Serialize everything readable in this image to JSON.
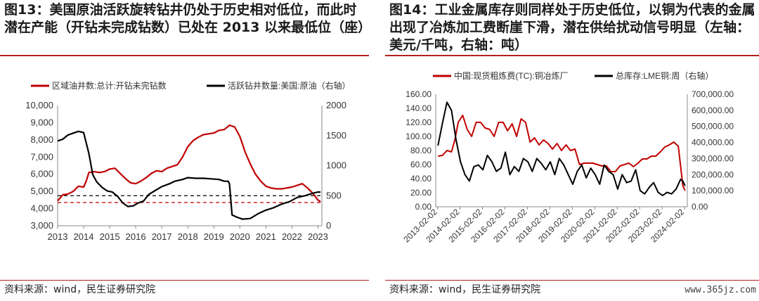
{
  "left": {
    "title": "图13：美国原油活跃旋转钻井仍处于历史相对低位，而此时潜在产能（开钻未完成钻数）已处在 2013 以来最低位（座）",
    "source": "资料来源：wind，民生证券研究院",
    "chart_data": {
      "type": "line",
      "title": "",
      "legend": "top",
      "x_ticks": [
        "2013",
        "2014",
        "2015",
        "2016",
        "2017",
        "2018",
        "2019",
        "2020",
        "2021",
        "2022",
        "2023"
      ],
      "y_left": {
        "ticks": [
          "3,000",
          "4,000",
          "5,000",
          "6,000",
          "7,000",
          "8,000",
          "9,000",
          "10,000"
        ],
        "range": [
          3000,
          10000
        ]
      },
      "y_right": {
        "ticks": [
          "0",
          "500",
          "1000",
          "1500",
          "2000"
        ],
        "range": [
          0,
          2000
        ]
      },
      "reference_lines": [
        {
          "axis": "left",
          "value": 4350,
          "color": "#c00000",
          "style": "dashed"
        },
        {
          "axis": "right",
          "value": 500,
          "color": "#000000",
          "style": "dashed"
        }
      ],
      "series": [
        {
          "name": "区域油井数:总计:开钻未完钻数",
          "axis": "left",
          "color": "#c00000",
          "x": [
            2013.0,
            2013.2,
            2013.4,
            2013.6,
            2013.8,
            2014.0,
            2014.1,
            2014.2,
            2014.4,
            2014.6,
            2014.8,
            2015.0,
            2015.2,
            2015.4,
            2015.6,
            2015.8,
            2016.0,
            2016.2,
            2016.4,
            2016.6,
            2016.8,
            2017.0,
            2017.2,
            2017.4,
            2017.6,
            2017.8,
            2018.0,
            2018.2,
            2018.4,
            2018.6,
            2018.8,
            2019.0,
            2019.2,
            2019.4,
            2019.6,
            2019.8,
            2020.0,
            2020.2,
            2020.4,
            2020.6,
            2020.8,
            2021.0,
            2021.2,
            2021.4,
            2021.6,
            2021.8,
            2022.0,
            2022.2,
            2022.4,
            2022.6,
            2022.8,
            2023.0,
            2023.1
          ],
          "y": [
            4450,
            4800,
            4850,
            5000,
            5300,
            5250,
            5600,
            6100,
            6150,
            6100,
            6150,
            6300,
            6350,
            6050,
            5750,
            5500,
            5450,
            5600,
            5800,
            6050,
            6200,
            6150,
            6350,
            6450,
            6550,
            7000,
            7600,
            7950,
            8150,
            8300,
            8350,
            8400,
            8550,
            8600,
            8850,
            8750,
            8200,
            7300,
            6600,
            6000,
            5600,
            5300,
            5200,
            5150,
            5150,
            5200,
            5250,
            5350,
            5450,
            5200,
            4900,
            4500,
            4400
          ]
        },
        {
          "name": "活跃钻井数量:美国:原油（右轴）",
          "axis": "right",
          "color": "#000000",
          "x": [
            2013.0,
            2013.2,
            2013.4,
            2013.6,
            2013.8,
            2014.0,
            2014.2,
            2014.35,
            2014.5,
            2014.7,
            2014.9,
            2015.1,
            2015.3,
            2015.5,
            2015.7,
            2015.9,
            2016.1,
            2016.3,
            2016.5,
            2016.8,
            2017.0,
            2017.3,
            2017.5,
            2017.8,
            2018.0,
            2018.3,
            2018.6,
            2018.9,
            2019.2,
            2019.4,
            2019.55,
            2019.6,
            2019.7,
            2019.9,
            2020.1,
            2020.4,
            2020.7,
            2021.0,
            2021.3,
            2021.6,
            2021.9,
            2022.2,
            2022.5,
            2022.8,
            2023.0,
            2023.1
          ],
          "y": [
            1410,
            1440,
            1510,
            1540,
            1570,
            1550,
            1200,
            850,
            730,
            640,
            580,
            560,
            490,
            380,
            320,
            330,
            380,
            410,
            520,
            600,
            650,
            700,
            740,
            770,
            800,
            790,
            790,
            780,
            770,
            740,
            740,
            700,
            180,
            140,
            110,
            120,
            200,
            260,
            300,
            360,
            400,
            470,
            500,
            540,
            560,
            560
          ]
        }
      ]
    }
  },
  "right": {
    "title": "图14：工业金属库存则同样处于历史低位，以铜为代表的金属出现了冶炼加工费断崖下滑，潜在供给扰动信号明显（左轴：美元/千吨，右轴：吨）",
    "source": "资料来源：wind，民生证券研究院",
    "watermark": "www.365jz.com",
    "chart_data": {
      "type": "line",
      "title": "",
      "legend": "top",
      "x_ticks": [
        "2013-02-02",
        "2014-02-02",
        "2015-02-02",
        "2016-02-02",
        "2017-02-02",
        "2018-02-02",
        "2019-02-02",
        "2020-02-02",
        "2021-02-02",
        "2022-02-02",
        "2023-02-02",
        "2024-02-02"
      ],
      "y_left": {
        "ticks": [
          "0.00",
          "20.00",
          "40.00",
          "60.00",
          "80.00",
          "100.00",
          "120.00",
          "140.00",
          "160.00"
        ],
        "range": [
          0,
          160
        ]
      },
      "y_right": {
        "ticks": [
          "0.00",
          "100,000.00",
          "200,000.00",
          "300,000.00",
          "400,000.00",
          "500,000.00",
          "600,000.00",
          "700,000.00"
        ],
        "range": [
          0,
          700000
        ]
      },
      "series": [
        {
          "name": "中国:现货粗炼费(TC):铜冶炼厂",
          "axis": "left",
          "color": "#c00000",
          "x": [
            2013.1,
            2013.3,
            2013.5,
            2013.7,
            2013.85,
            2014.0,
            2014.2,
            2014.4,
            2014.6,
            2014.8,
            2015.0,
            2015.2,
            2015.4,
            2015.6,
            2015.8,
            2016.0,
            2016.2,
            2016.4,
            2016.6,
            2016.8,
            2017.0,
            2017.2,
            2017.4,
            2017.6,
            2017.8,
            2018.0,
            2018.2,
            2018.4,
            2018.6,
            2018.8,
            2019.0,
            2019.2,
            2019.4,
            2019.6,
            2019.8,
            2020.0,
            2020.2,
            2020.4,
            2020.6,
            2020.8,
            2021.0,
            2021.2,
            2021.4,
            2021.6,
            2021.8,
            2022.0,
            2022.2,
            2022.4,
            2022.6,
            2022.8,
            2023.0,
            2023.2,
            2023.4,
            2023.6,
            2023.8,
            2024.0,
            2024.1
          ],
          "y": [
            72,
            73,
            80,
            78,
            95,
            120,
            130,
            110,
            100,
            120,
            120,
            112,
            110,
            100,
            120,
            120,
            108,
            118,
            100,
            125,
            120,
            92,
            98,
            88,
            95,
            90,
            82,
            90,
            80,
            88,
            80,
            82,
            60,
            62,
            62,
            62,
            60,
            58,
            58,
            50,
            50,
            58,
            60,
            62,
            57,
            62,
            68,
            68,
            72,
            72,
            78,
            85,
            88,
            92,
            86,
            30,
            23
          ]
        },
        {
          "name": "总库存:LME铜:周（右轴）",
          "axis": "right",
          "color": "#000000",
          "x": [
            2013.1,
            2013.3,
            2013.5,
            2013.7,
            2013.9,
            2014.1,
            2014.3,
            2014.5,
            2014.7,
            2014.9,
            2015.1,
            2015.3,
            2015.5,
            2015.7,
            2015.9,
            2016.1,
            2016.3,
            2016.5,
            2016.7,
            2016.9,
            2017.1,
            2017.3,
            2017.5,
            2017.7,
            2017.9,
            2018.1,
            2018.3,
            2018.5,
            2018.7,
            2018.9,
            2019.1,
            2019.3,
            2019.5,
            2019.7,
            2019.9,
            2020.1,
            2020.3,
            2020.5,
            2020.7,
            2020.9,
            2021.1,
            2021.3,
            2021.5,
            2021.7,
            2021.9,
            2022.1,
            2022.3,
            2022.5,
            2022.7,
            2022.9,
            2023.1,
            2023.3,
            2023.5,
            2023.7,
            2023.9,
            2024.0,
            2024.1
          ],
          "y": [
            380000,
            520000,
            650000,
            600000,
            420000,
            280000,
            200000,
            160000,
            250000,
            260000,
            230000,
            320000,
            280000,
            220000,
            240000,
            340000,
            200000,
            250000,
            220000,
            300000,
            280000,
            220000,
            300000,
            270000,
            230000,
            280000,
            200000,
            300000,
            260000,
            200000,
            140000,
            220000,
            260000,
            180000,
            240000,
            200000,
            140000,
            260000,
            220000,
            200000,
            110000,
            200000,
            150000,
            160000,
            230000,
            100000,
            80000,
            120000,
            150000,
            90000,
            70000,
            90000,
            80000,
            110000,
            170000,
            160000,
            130000
          ]
        }
      ]
    }
  }
}
